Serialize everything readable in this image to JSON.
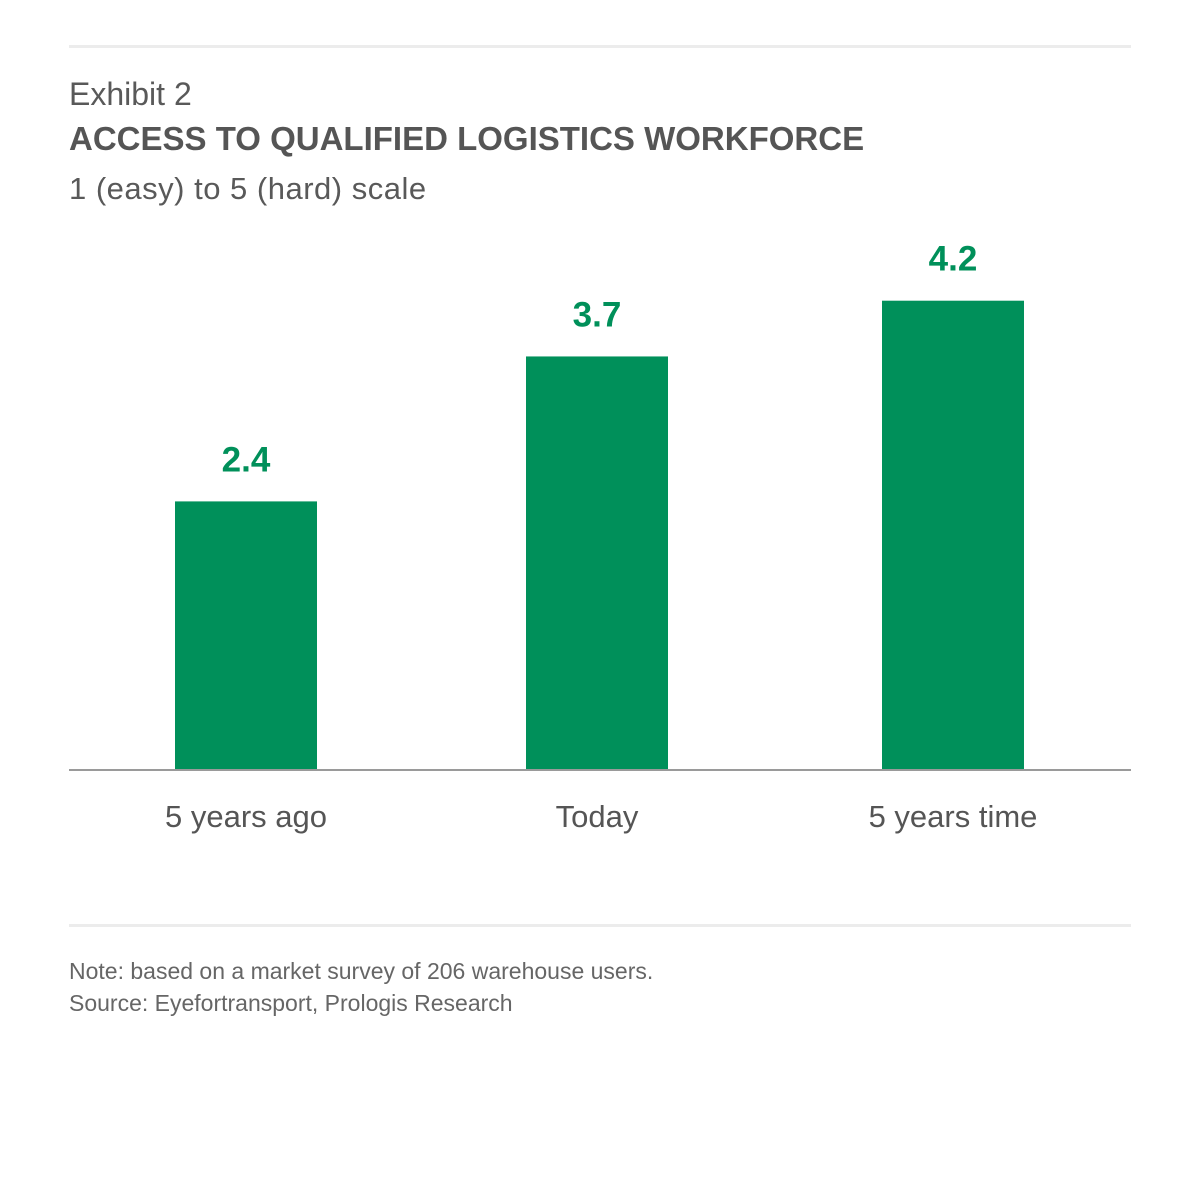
{
  "header": {
    "exhibit": "Exhibit 2",
    "title": "ACCESS TO QUALIFIED LOGISTICS WORKFORCE",
    "subtitle": "1 (easy) to 5 (hard) scale"
  },
  "chart_data": {
    "type": "bar",
    "categories": [
      "5 years ago",
      "Today",
      "5 years time"
    ],
    "values": [
      2.4,
      3.7,
      4.2
    ],
    "data_labels": [
      "2.4",
      "3.7",
      "4.2"
    ],
    "title": "ACCESS TO QUALIFIED LOGISTICS WORKFORCE",
    "subtitle": "1 (easy) to 5 (hard) scale",
    "xlabel": "",
    "ylabel": "",
    "ylim": [
      0,
      5
    ],
    "grid": false,
    "legend": "none",
    "colors": {
      "bar": "#00905a",
      "label": "#00905a",
      "axis": "#9a9a9a"
    }
  },
  "notes": {
    "note": "Note: based on a market survey of 206 warehouse users.",
    "source": "Source: Eyefortransport, Prologis Research"
  }
}
